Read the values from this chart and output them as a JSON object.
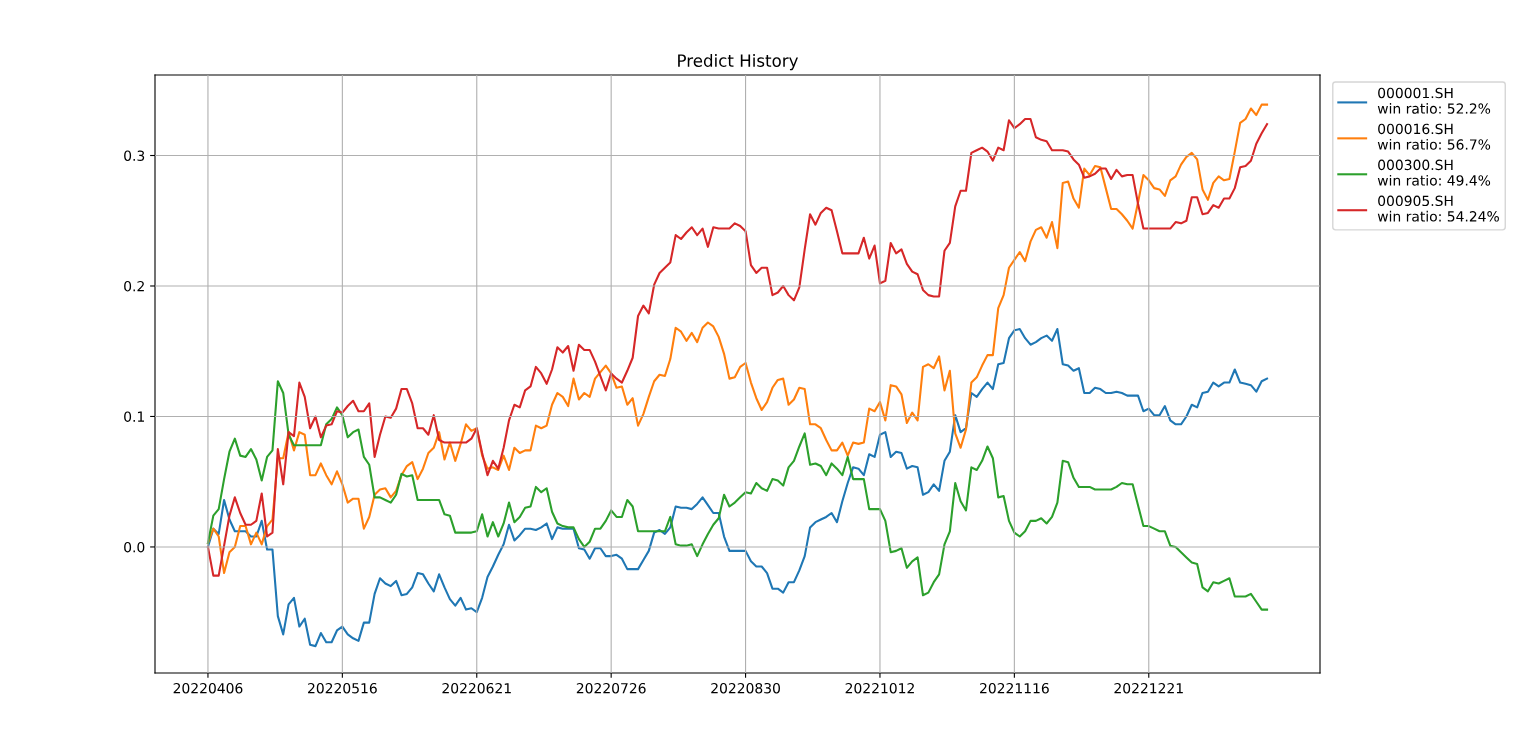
{
  "chart_data": {
    "type": "line",
    "title": "Predict History",
    "categories": [
      "20220406",
      null,
      null,
      null,
      null,
      null,
      null,
      null,
      null,
      null,
      null,
      null,
      null,
      null,
      null,
      null,
      null,
      null,
      null,
      null,
      null,
      null,
      null,
      null,
      null,
      "20220516",
      null,
      null,
      null,
      null,
      null,
      null,
      null,
      null,
      null,
      null,
      null,
      null,
      null,
      null,
      null,
      null,
      null,
      null,
      null,
      null,
      null,
      null,
      null,
      null,
      "20220621",
      null,
      null,
      null,
      null,
      null,
      null,
      null,
      null,
      null,
      null,
      null,
      null,
      null,
      null,
      null,
      null,
      null,
      null,
      null,
      null,
      null,
      null,
      null,
      null,
      "20220726",
      null,
      null,
      null,
      null,
      null,
      null,
      null,
      null,
      null,
      null,
      null,
      null,
      null,
      null,
      null,
      null,
      null,
      null,
      null,
      null,
      null,
      null,
      null,
      null,
      "20220830",
      null,
      null,
      null,
      null,
      null,
      null,
      null,
      null,
      null,
      null,
      null,
      null,
      null,
      null,
      null,
      null,
      null,
      null,
      null,
      null,
      null,
      null,
      null,
      null,
      "20221012",
      null,
      null,
      null,
      null,
      null,
      null,
      null,
      null,
      null,
      null,
      null,
      null,
      null,
      null,
      null,
      null,
      null,
      null,
      null,
      null,
      null,
      null,
      null,
      null,
      "20221116",
      null,
      null,
      null,
      null,
      null,
      null,
      null,
      null,
      null,
      null,
      null,
      null,
      null,
      null,
      null,
      null,
      null,
      null,
      null,
      null,
      null,
      null,
      null,
      null,
      "20221221",
      null,
      null,
      null,
      null,
      null,
      null,
      null,
      null,
      null,
      null,
      null,
      null,
      null,
      null,
      null,
      null,
      null,
      null,
      null,
      null,
      null,
      null
    ],
    "ylim": [
      -0.0966,
      0.3617
    ],
    "yticks": [
      {
        "value": 0,
        "label": "0.0"
      },
      {
        "value": 0.1,
        "label": "0.1"
      },
      {
        "value": 0.2,
        "label": "0.2"
      },
      {
        "value": 0.3,
        "label": "0.3"
      }
    ],
    "grid": true,
    "legend": "top right",
    "line_style": "solid",
    "marker": "none",
    "series": [
      {
        "name": "000001.SH\nwin ratio: 52.2%",
        "color": "#1f77b4",
        "values": [
          0.0,
          0.014,
          0.01,
          0.036,
          0.021,
          0.012,
          0.012,
          0.012,
          0.008,
          0.008,
          0.02,
          -0.002,
          -0.002,
          -0.053,
          -0.067,
          -0.044,
          -0.039,
          -0.061,
          -0.055,
          -0.075,
          -0.076,
          -0.066,
          -0.073,
          -0.073,
          -0.064,
          -0.061,
          -0.067,
          -0.07,
          -0.072,
          -0.058,
          -0.058,
          -0.036,
          -0.024,
          -0.028,
          -0.03,
          -0.026,
          -0.037,
          -0.036,
          -0.031,
          -0.02,
          -0.021,
          -0.028,
          -0.034,
          -0.021,
          -0.031,
          -0.04,
          -0.045,
          -0.039,
          -0.048,
          -0.047,
          -0.05,
          -0.039,
          -0.023,
          -0.015,
          -0.006,
          0.002,
          0.017,
          0.005,
          0.009,
          0.014,
          0.014,
          0.013,
          0.015,
          0.018,
          0.006,
          0.015,
          0.014,
          0.014,
          0.014,
          -0.001,
          -0.002,
          -0.009,
          -0.001,
          -0.001,
          -0.007,
          -0.007,
          -0.006,
          -0.009,
          -0.017,
          -0.017,
          -0.017,
          -0.01,
          -0.003,
          0.011,
          0.013,
          0.01,
          0.015,
          0.031,
          0.03,
          0.03,
          0.029,
          0.033,
          0.038,
          0.032,
          0.026,
          0.026,
          0.008,
          -0.003,
          -0.003,
          -0.003,
          -0.003,
          -0.011,
          -0.015,
          -0.015,
          -0.02,
          -0.032,
          -0.032,
          -0.035,
          -0.027,
          -0.027,
          -0.018,
          -0.007,
          0.015,
          0.019,
          0.021,
          0.023,
          0.026,
          0.019,
          0.035,
          0.049,
          0.061,
          0.06,
          0.055,
          0.071,
          0.069,
          0.086,
          0.088,
          0.069,
          0.073,
          0.072,
          0.06,
          0.062,
          0.061,
          0.04,
          0.042,
          0.048,
          0.043,
          0.066,
          0.073,
          0.101,
          0.088,
          0.091,
          0.118,
          0.115,
          0.121,
          0.126,
          0.121,
          0.14,
          0.141,
          0.16,
          0.166,
          0.167,
          0.16,
          0.155,
          0.157,
          0.16,
          0.162,
          0.158,
          0.167,
          0.14,
          0.139,
          0.135,
          0.137,
          0.118,
          0.118,
          0.122,
          0.121,
          0.118,
          0.118,
          0.119,
          0.118,
          0.116,
          0.116,
          0.116,
          0.104,
          0.106,
          0.101,
          0.101,
          0.108,
          0.097,
          0.094,
          0.094,
          0.1,
          0.109,
          0.107,
          0.118,
          0.119,
          0.126,
          0.123,
          0.126,
          0.126,
          0.136,
          0.126,
          0.125,
          0.124,
          0.119,
          0.127,
          0.129
        ]
      },
      {
        "name": "000016.SH\nwin ratio: 56.7%",
        "color": "#ff7f0e",
        "values": [
          0.003,
          0.014,
          0.008,
          -0.02,
          -0.004,
          0.0,
          0.016,
          0.016,
          0.002,
          0.011,
          0.002,
          0.016,
          0.021,
          0.068,
          0.068,
          0.088,
          0.074,
          0.088,
          0.086,
          0.055,
          0.055,
          0.064,
          0.055,
          0.048,
          0.058,
          0.048,
          0.034,
          0.037,
          0.037,
          0.014,
          0.023,
          0.04,
          0.044,
          0.045,
          0.038,
          0.043,
          0.055,
          0.062,
          0.065,
          0.052,
          0.06,
          0.072,
          0.076,
          0.088,
          0.067,
          0.08,
          0.066,
          0.079,
          0.094,
          0.089,
          0.091,
          0.07,
          0.06,
          0.061,
          0.059,
          0.07,
          0.059,
          0.076,
          0.072,
          0.074,
          0.074,
          0.093,
          0.091,
          0.093,
          0.109,
          0.118,
          0.115,
          0.108,
          0.129,
          0.113,
          0.118,
          0.115,
          0.129,
          0.134,
          0.139,
          0.133,
          0.122,
          0.123,
          0.109,
          0.114,
          0.093,
          0.102,
          0.115,
          0.127,
          0.132,
          0.131,
          0.144,
          0.168,
          0.165,
          0.158,
          0.164,
          0.157,
          0.168,
          0.172,
          0.169,
          0.161,
          0.148,
          0.129,
          0.13,
          0.138,
          0.141,
          0.126,
          0.114,
          0.105,
          0.111,
          0.122,
          0.128,
          0.129,
          0.109,
          0.113,
          0.122,
          0.121,
          0.094,
          0.094,
          0.091,
          0.082,
          0.074,
          0.074,
          0.08,
          0.07,
          0.08,
          0.079,
          0.08,
          0.106,
          0.104,
          0.111,
          0.097,
          0.124,
          0.123,
          0.117,
          0.095,
          0.103,
          0.097,
          0.138,
          0.14,
          0.137,
          0.146,
          0.12,
          0.135,
          0.087,
          0.076,
          0.09,
          0.126,
          0.13,
          0.139,
          0.147,
          0.147,
          0.183,
          0.193,
          0.214,
          0.22,
          0.226,
          0.219,
          0.234,
          0.243,
          0.245,
          0.237,
          0.249,
          0.229,
          0.279,
          0.28,
          0.267,
          0.26,
          0.29,
          0.285,
          0.292,
          0.291,
          0.275,
          0.259,
          0.259,
          0.255,
          0.25,
          0.244,
          0.264,
          0.285,
          0.281,
          0.275,
          0.274,
          0.269,
          0.281,
          0.284,
          0.293,
          0.299,
          0.302,
          0.297,
          0.274,
          0.266,
          0.279,
          0.284,
          0.281,
          0.282,
          0.303,
          0.325,
          0.328,
          0.336,
          0.331,
          0.339,
          0.339
        ]
      },
      {
        "name": "000300.SH\nwin ratio: 49.4%",
        "color": "#2ca02c",
        "values": [
          0.003,
          0.024,
          0.029,
          0.052,
          0.073,
          0.083,
          0.07,
          0.069,
          0.075,
          0.067,
          0.051,
          0.069,
          0.074,
          0.127,
          0.118,
          0.086,
          0.078,
          0.078,
          0.078,
          0.078,
          0.078,
          0.078,
          0.094,
          0.098,
          0.107,
          0.101,
          0.084,
          0.088,
          0.09,
          0.069,
          0.063,
          0.038,
          0.038,
          0.036,
          0.034,
          0.04,
          0.056,
          0.054,
          0.055,
          0.036,
          0.036,
          0.036,
          0.036,
          0.036,
          0.025,
          0.024,
          0.011,
          0.011,
          0.011,
          0.011,
          0.012,
          0.025,
          0.008,
          0.019,
          0.008,
          0.018,
          0.034,
          0.019,
          0.023,
          0.03,
          0.031,
          0.046,
          0.042,
          0.045,
          0.027,
          0.018,
          0.016,
          0.015,
          0.015,
          0.006,
          0.0,
          0.004,
          0.014,
          0.014,
          0.02,
          0.028,
          0.023,
          0.023,
          0.036,
          0.031,
          0.012,
          0.012,
          0.012,
          0.012,
          0.012,
          0.012,
          0.023,
          0.002,
          0.001,
          0.001,
          0.002,
          -0.007,
          0.002,
          0.01,
          0.017,
          0.022,
          0.04,
          0.031,
          0.034,
          0.038,
          0.042,
          0.041,
          0.049,
          0.045,
          0.043,
          0.052,
          0.051,
          0.047,
          0.061,
          0.066,
          0.077,
          0.087,
          0.063,
          0.064,
          0.062,
          0.055,
          0.064,
          0.06,
          0.055,
          0.069,
          0.052,
          0.052,
          0.052,
          0.029,
          0.029,
          0.029,
          0.02,
          -0.004,
          -0.003,
          -0.001,
          -0.016,
          -0.011,
          -0.008,
          -0.037,
          -0.035,
          -0.027,
          -0.021,
          0.002,
          0.012,
          0.049,
          0.035,
          0.028,
          0.061,
          0.059,
          0.066,
          0.077,
          0.068,
          0.038,
          0.039,
          0.02,
          0.011,
          0.008,
          0.012,
          0.02,
          0.02,
          0.022,
          0.018,
          0.023,
          0.034,
          0.066,
          0.065,
          0.053,
          0.046,
          0.046,
          0.046,
          0.044,
          0.044,
          0.044,
          0.044,
          0.046,
          0.049,
          0.048,
          0.048,
          0.032,
          0.016,
          0.016,
          0.014,
          0.012,
          0.012,
          0.001,
          0.0,
          -0.004,
          -0.008,
          -0.012,
          -0.013,
          -0.031,
          -0.034,
          -0.027,
          -0.028,
          -0.026,
          -0.024,
          -0.038,
          -0.038,
          -0.038,
          -0.036,
          -0.042,
          -0.048,
          -0.048
        ]
      },
      {
        "name": "000905.SH\nwin ratio: 54.24%",
        "color": "#d62728",
        "values": [
          0.0,
          -0.022,
          -0.022,
          0.001,
          0.024,
          0.038,
          0.026,
          0.017,
          0.017,
          0.02,
          0.041,
          0.008,
          0.011,
          0.075,
          0.048,
          0.088,
          0.085,
          0.126,
          0.115,
          0.091,
          0.1,
          0.084,
          0.093,
          0.094,
          0.104,
          0.103,
          0.108,
          0.112,
          0.104,
          0.104,
          0.11,
          0.069,
          0.086,
          0.1,
          0.099,
          0.106,
          0.121,
          0.121,
          0.11,
          0.091,
          0.091,
          0.086,
          0.101,
          0.082,
          0.08,
          0.08,
          0.08,
          0.08,
          0.08,
          0.083,
          0.091,
          0.072,
          0.055,
          0.066,
          0.06,
          0.076,
          0.097,
          0.109,
          0.107,
          0.12,
          0.123,
          0.138,
          0.133,
          0.125,
          0.136,
          0.153,
          0.149,
          0.154,
          0.135,
          0.155,
          0.151,
          0.151,
          0.142,
          0.131,
          0.12,
          0.133,
          0.129,
          0.126,
          0.135,
          0.145,
          0.177,
          0.185,
          0.179,
          0.201,
          0.21,
          0.214,
          0.218,
          0.239,
          0.236,
          0.241,
          0.245,
          0.239,
          0.244,
          0.23,
          0.245,
          0.244,
          0.244,
          0.244,
          0.248,
          0.246,
          0.242,
          0.216,
          0.21,
          0.214,
          0.214,
          0.193,
          0.195,
          0.2,
          0.193,
          0.189,
          0.199,
          0.228,
          0.255,
          0.247,
          0.256,
          0.26,
          0.258,
          0.242,
          0.225,
          0.225,
          0.225,
          0.225,
          0.237,
          0.221,
          0.231,
          0.202,
          0.204,
          0.233,
          0.225,
          0.228,
          0.217,
          0.211,
          0.209,
          0.197,
          0.193,
          0.192,
          0.192,
          0.227,
          0.233,
          0.261,
          0.273,
          0.273,
          0.302,
          0.304,
          0.306,
          0.303,
          0.296,
          0.306,
          0.304,
          0.327,
          0.321,
          0.324,
          0.328,
          0.328,
          0.314,
          0.312,
          0.311,
          0.304,
          0.304,
          0.304,
          0.303,
          0.297,
          0.293,
          0.283,
          0.284,
          0.286,
          0.29,
          0.29,
          0.282,
          0.289,
          0.284,
          0.285,
          0.285,
          0.263,
          0.244,
          0.244,
          0.244,
          0.244,
          0.244,
          0.244,
          0.249,
          0.248,
          0.25,
          0.268,
          0.268,
          0.255,
          0.256,
          0.262,
          0.26,
          0.267,
          0.267,
          0.275,
          0.291,
          0.292,
          0.296,
          0.309,
          0.317,
          0.324
        ]
      }
    ]
  }
}
